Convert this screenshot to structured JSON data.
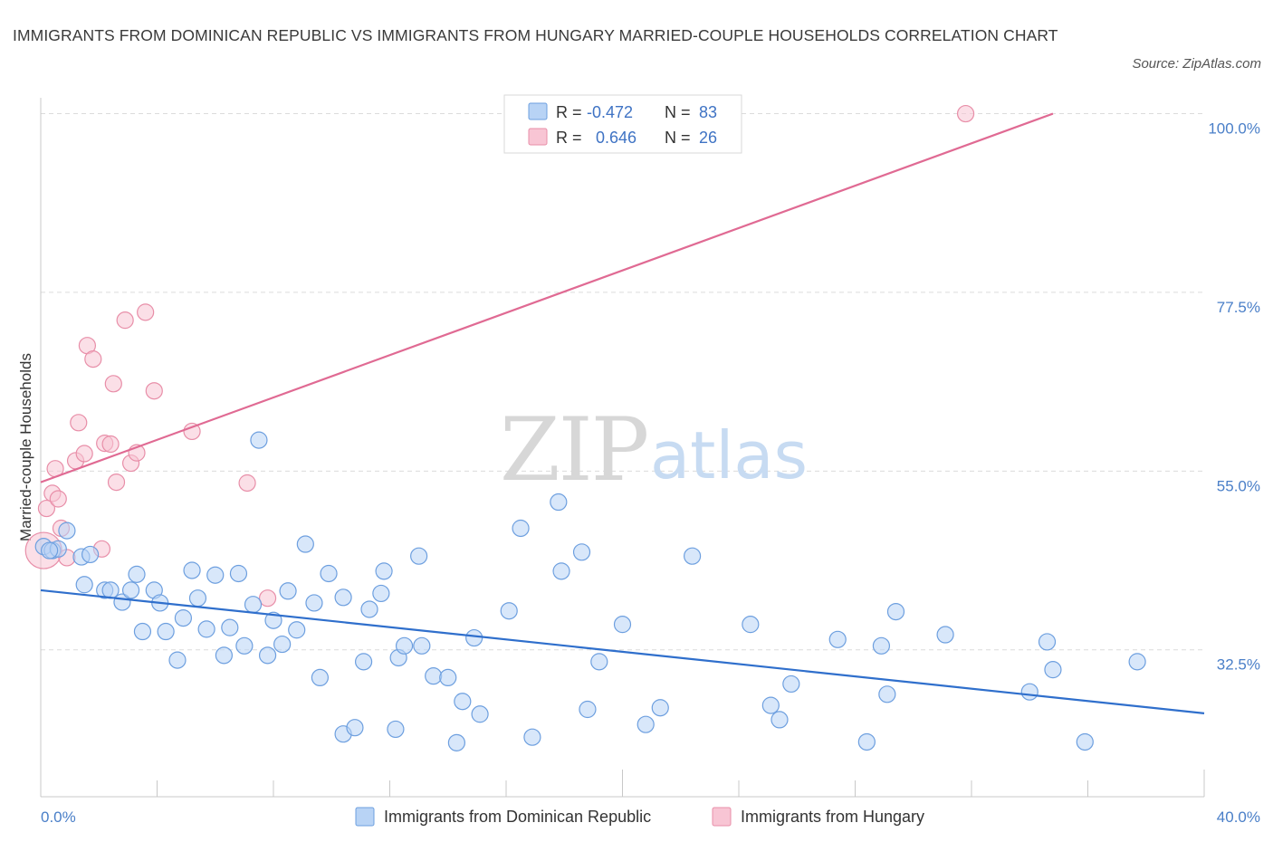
{
  "title": "IMMIGRANTS FROM DOMINICAN REPUBLIC VS IMMIGRANTS FROM HUNGARY MARRIED-COUPLE HOUSEHOLDS CORRELATION CHART",
  "source": "Source: ZipAtlas.com",
  "watermark": {
    "zip": "ZIP",
    "atlas": "atlas"
  },
  "colors": {
    "blue_fill": "#b8d3f5",
    "blue_stroke": "#6d9fdf",
    "blue_line": "#2f6fcc",
    "pink_fill": "#f8c5d4",
    "pink_stroke": "#e88ea8",
    "pink_line": "#e06a93",
    "grid": "#dcdcdc",
    "tick_label": "#4a7fc8"
  },
  "legend_box": {
    "rows": [
      {
        "r_label": "R =",
        "r_value": "-0.472",
        "n_label": "N =",
        "n_value": "83",
        "series": "blue"
      },
      {
        "r_label": "R =",
        "r_value": "0.646",
        "n_label": "N =",
        "n_value": "26",
        "series": "pink"
      }
    ]
  },
  "chart_data": {
    "type": "scatter",
    "title": "IMMIGRANTS FROM DOMINICAN REPUBLIC VS IMMIGRANTS FROM HUNGARY MARRIED-COUPLE HOUSEHOLDS CORRELATION CHART",
    "xlabel": "",
    "ylabel": "Married-couple Households",
    "xlim": [
      0,
      40
    ],
    "ylim": [
      14,
      102
    ],
    "x_tick_labels": [
      "0.0%",
      "40.0%"
    ],
    "y_ticks": [
      32.5,
      55.0,
      77.5,
      100.0
    ],
    "y_tick_labels": [
      "32.5%",
      "55.0%",
      "77.5%",
      "100.0%"
    ],
    "grid": true,
    "legend_position": "bottom",
    "series": [
      {
        "name": "Immigrants from Dominican Republic",
        "color": "#b8d3f5",
        "r": -0.472,
        "n": 83,
        "trend": {
          "x": [
            0,
            40
          ],
          "y": [
            40.0,
            24.5
          ]
        },
        "points": [
          [
            0.1,
            45.5
          ],
          [
            0.4,
            45.0
          ],
          [
            0.6,
            45.2
          ],
          [
            0.9,
            47.5
          ],
          [
            1.4,
            44.2
          ],
          [
            1.5,
            40.7
          ],
          [
            1.7,
            44.5
          ],
          [
            2.2,
            40.0
          ],
          [
            2.4,
            40.0
          ],
          [
            2.8,
            38.5
          ],
          [
            3.1,
            40.0
          ],
          [
            3.3,
            42.0
          ],
          [
            3.5,
            34.8
          ],
          [
            3.9,
            40.0
          ],
          [
            4.1,
            38.4
          ],
          [
            4.3,
            34.8
          ],
          [
            4.7,
            31.2
          ],
          [
            4.9,
            36.5
          ],
          [
            5.2,
            42.5
          ],
          [
            5.4,
            39.0
          ],
          [
            5.7,
            35.1
          ],
          [
            6.0,
            41.9
          ],
          [
            6.3,
            31.8
          ],
          [
            6.5,
            35.3
          ],
          [
            6.8,
            42.1
          ],
          [
            7.0,
            33.0
          ],
          [
            7.3,
            38.2
          ],
          [
            7.5,
            58.9
          ],
          [
            7.8,
            31.8
          ],
          [
            8.0,
            36.2
          ],
          [
            8.3,
            33.2
          ],
          [
            8.5,
            39.9
          ],
          [
            8.8,
            35.0
          ],
          [
            9.1,
            45.8
          ],
          [
            9.4,
            38.4
          ],
          [
            9.6,
            29.0
          ],
          [
            9.9,
            42.1
          ],
          [
            10.4,
            21.9
          ],
          [
            10.4,
            39.1
          ],
          [
            10.8,
            22.7
          ],
          [
            11.1,
            31.0
          ],
          [
            11.3,
            37.6
          ],
          [
            11.7,
            39.6
          ],
          [
            11.8,
            42.4
          ],
          [
            12.2,
            22.5
          ],
          [
            12.3,
            31.5
          ],
          [
            12.5,
            33.0
          ],
          [
            13.0,
            44.3
          ],
          [
            13.1,
            33.0
          ],
          [
            13.5,
            29.2
          ],
          [
            14.0,
            29.0
          ],
          [
            14.3,
            20.8
          ],
          [
            14.5,
            26.0
          ],
          [
            14.9,
            34.0
          ],
          [
            15.1,
            24.4
          ],
          [
            16.1,
            37.4
          ],
          [
            16.5,
            47.8
          ],
          [
            16.9,
            21.5
          ],
          [
            17.8,
            51.1
          ],
          [
            17.9,
            42.4
          ],
          [
            18.6,
            44.8
          ],
          [
            18.8,
            25.0
          ],
          [
            19.2,
            31.0
          ],
          [
            20.0,
            35.7
          ],
          [
            20.8,
            23.1
          ],
          [
            21.3,
            25.2
          ],
          [
            22.4,
            44.3
          ],
          [
            24.4,
            35.7
          ],
          [
            25.1,
            25.5
          ],
          [
            25.4,
            23.7
          ],
          [
            25.8,
            28.2
          ],
          [
            27.4,
            33.8
          ],
          [
            28.4,
            20.9
          ],
          [
            28.9,
            33.0
          ],
          [
            29.1,
            26.9
          ],
          [
            29.4,
            37.3
          ],
          [
            31.1,
            34.4
          ],
          [
            34.0,
            27.2
          ],
          [
            34.6,
            33.5
          ],
          [
            34.8,
            30.0
          ],
          [
            35.9,
            20.9
          ],
          [
            37.7,
            31.0
          ],
          [
            0.3,
            45.0
          ]
        ]
      },
      {
        "name": "Immigrants from Hungary",
        "color": "#f8c5d4",
        "r": 0.646,
        "n": 26,
        "trend": {
          "x": [
            0,
            34.8
          ],
          "y": [
            53.6,
            100.0
          ]
        },
        "points": [
          [
            0.1,
            45.0
          ],
          [
            0.2,
            50.3
          ],
          [
            0.4,
            52.2
          ],
          [
            0.5,
            55.3
          ],
          [
            0.6,
            51.5
          ],
          [
            0.7,
            47.8
          ],
          [
            0.9,
            44.1
          ],
          [
            1.2,
            56.3
          ],
          [
            1.3,
            61.1
          ],
          [
            1.5,
            57.2
          ],
          [
            1.6,
            70.8
          ],
          [
            1.8,
            69.1
          ],
          [
            2.1,
            45.2
          ],
          [
            2.2,
            58.5
          ],
          [
            2.4,
            58.4
          ],
          [
            2.5,
            66.0
          ],
          [
            2.6,
            53.6
          ],
          [
            2.9,
            74.0
          ],
          [
            3.1,
            56.0
          ],
          [
            3.3,
            57.3
          ],
          [
            3.6,
            75.0
          ],
          [
            3.9,
            65.1
          ],
          [
            5.2,
            60.0
          ],
          [
            7.1,
            53.5
          ],
          [
            7.8,
            39.0
          ],
          [
            31.8,
            100.0
          ]
        ]
      }
    ]
  }
}
